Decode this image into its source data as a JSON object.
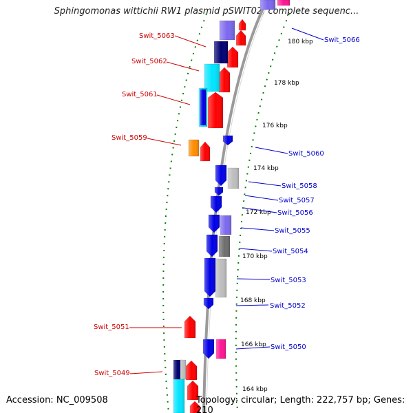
{
  "title": "Sphingomonas wittichii RW1 plasmid pSWIT02, complete sequenc...",
  "footer": {
    "accession": "Accession: NC_009508",
    "topology": "Topology: circular; Length: 222,757 bp; Genes: 210"
  },
  "colors": {
    "forward": "#ff0000",
    "reverse": "#0000e6",
    "cyan": "#00e5ff",
    "navy": "#000070",
    "slate_blue": "#7b68ee",
    "gray": "#bebebe",
    "dark_gray": "#6e6e6e",
    "orange": "#ff8c00",
    "magenta": "#ff1493",
    "ring": "#999999",
    "dots": "#008000"
  },
  "ticks": [
    "164 kbp",
    "166 kbp",
    "168 kbp",
    "170 kbp",
    "172 kbp",
    "174 kbp",
    "176 kbp",
    "178 kbp",
    "180 kbp"
  ],
  "left_labels": [
    "Swit_5063",
    "Swit_5062",
    "Swit_5061",
    "Swit_5059",
    "Swit_5051",
    "Swit_5049"
  ],
  "right_labels": [
    "Swit_5066",
    "Swit_5060",
    "Swit_5058",
    "Swit_5057",
    "Swit_5056",
    "Swit_5055",
    "Swit_5054",
    "Swit_5053",
    "Swit_5052",
    "Swit_5050"
  ]
}
